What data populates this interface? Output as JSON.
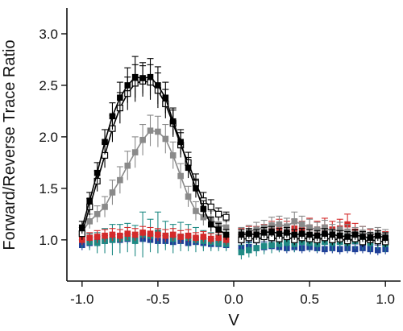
{
  "chart_data": {
    "type": "line",
    "title": "",
    "xlabel": "V",
    "ylabel": "Forward/Reverse Trace Ratio",
    "xlim": [
      -1.1,
      1.1
    ],
    "ylim": [
      0.6,
      3.25
    ],
    "xticks": [
      -1.0,
      -0.5,
      0.0,
      0.5,
      1.0
    ],
    "xtick_labels": [
      "-1.0",
      "-0.5",
      "0.0",
      "0.5",
      "1.0"
    ],
    "yticks": [
      1.0,
      1.5,
      2.0,
      2.5,
      3.0
    ],
    "ytick_labels": [
      "1.0",
      "1.5",
      "2.0",
      "2.5",
      "3.0"
    ],
    "grid": false,
    "legend": "none",
    "series": [
      {
        "color": "#000000",
        "marker": "filled-square",
        "line": true,
        "x": [
          -1.0,
          -0.95,
          -0.9,
          -0.85,
          -0.8,
          -0.75,
          -0.7,
          -0.65,
          -0.6,
          -0.55,
          -0.5,
          -0.45,
          -0.4,
          -0.35,
          -0.3,
          -0.25,
          -0.2,
          -0.15,
          -0.1,
          -0.05,
          0.05,
          0.1,
          0.15,
          0.2,
          0.25,
          0.3,
          0.35,
          0.4,
          0.45,
          0.5,
          0.55,
          0.6,
          0.65,
          0.7,
          0.75,
          0.8,
          0.85,
          0.9,
          0.95,
          1.0
        ],
        "y": [
          1.12,
          1.38,
          1.65,
          1.95,
          2.2,
          2.38,
          2.5,
          2.58,
          2.57,
          2.58,
          2.5,
          2.38,
          2.15,
          1.95,
          1.7,
          1.5,
          1.3,
          1.15,
          1.1,
          1.05,
          1.05,
          1.06,
          1.05,
          1.07,
          1.08,
          1.06,
          1.07,
          1.05,
          1.06,
          1.05,
          1.04,
          1.06,
          1.05,
          1.04,
          1.03,
          1.05,
          1.03,
          1.02,
          1.04,
          1.02
        ],
        "err": [
          0.06,
          0.08,
          0.1,
          0.12,
          0.13,
          0.15,
          0.17,
          0.2,
          0.15,
          0.18,
          0.18,
          0.15,
          0.13,
          0.12,
          0.1,
          0.09,
          0.08,
          0.07,
          0.06,
          0.05,
          0.05,
          0.05,
          0.05,
          0.05,
          0.05,
          0.05,
          0.05,
          0.05,
          0.05,
          0.05,
          0.05,
          0.05,
          0.05,
          0.05,
          0.05,
          0.05,
          0.05,
          0.05,
          0.05,
          0.05
        ]
      },
      {
        "color": "#000000",
        "marker": "open-square",
        "line": true,
        "x": [
          -1.0,
          -0.95,
          -0.9,
          -0.85,
          -0.8,
          -0.75,
          -0.7,
          -0.65,
          -0.6,
          -0.55,
          -0.5,
          -0.45,
          -0.4,
          -0.35,
          -0.3,
          -0.25,
          -0.2,
          -0.15,
          -0.1,
          -0.05,
          0.05,
          0.1,
          0.15,
          0.2,
          0.25,
          0.3,
          0.35,
          0.4,
          0.45,
          0.5,
          0.55,
          0.6,
          0.65,
          0.7,
          0.75,
          0.8,
          0.85,
          0.9,
          0.95,
          1.0
        ],
        "y": [
          1.06,
          1.32,
          1.57,
          1.82,
          2.08,
          2.28,
          2.42,
          2.52,
          2.54,
          2.53,
          2.45,
          2.32,
          2.13,
          1.92,
          1.75,
          1.55,
          1.38,
          1.32,
          1.25,
          1.22,
          1.0,
          1.02,
          1.0,
          1.03,
          1.02,
          1.01,
          1.03,
          1.0,
          1.02,
          1.01,
          1.0,
          1.02,
          1.0,
          1.01,
          0.99,
          1.01,
          0.98,
          1.0,
          0.99,
          0.98
        ],
        "err": [
          0.06,
          0.08,
          0.1,
          0.12,
          0.13,
          0.15,
          0.16,
          0.18,
          0.15,
          0.17,
          0.17,
          0.14,
          0.13,
          0.12,
          0.1,
          0.09,
          0.08,
          0.07,
          0.06,
          0.05,
          0.05,
          0.05,
          0.05,
          0.05,
          0.05,
          0.05,
          0.05,
          0.05,
          0.05,
          0.05,
          0.05,
          0.05,
          0.05,
          0.05,
          0.05,
          0.05,
          0.05,
          0.05,
          0.05,
          0.05
        ]
      },
      {
        "color": "#8a8a8a",
        "marker": "filled-square",
        "line": true,
        "x": [
          -1.0,
          -0.95,
          -0.9,
          -0.85,
          -0.8,
          -0.75,
          -0.7,
          -0.65,
          -0.6,
          -0.55,
          -0.5,
          -0.45,
          -0.4,
          -0.35,
          -0.3,
          -0.25,
          -0.2,
          -0.15,
          -0.1,
          -0.05,
          0.05,
          0.1,
          0.15,
          0.2,
          0.25,
          0.3,
          0.35,
          0.4,
          0.45,
          0.5,
          0.55,
          0.6,
          0.65,
          0.7,
          0.75,
          0.8,
          0.85,
          0.9,
          0.95,
          1.0
        ],
        "y": [
          1.08,
          1.18,
          1.25,
          1.32,
          1.46,
          1.58,
          1.72,
          1.85,
          1.97,
          2.06,
          2.05,
          1.98,
          1.82,
          1.62,
          1.42,
          1.28,
          1.22,
          1.2,
          1.15,
          1.12,
          1.06,
          1.08,
          1.1,
          1.12,
          1.14,
          1.15,
          1.13,
          1.18,
          1.15,
          1.12,
          1.1,
          1.12,
          1.08,
          1.1,
          1.08,
          1.06,
          1.07,
          1.05,
          1.06,
          1.04
        ],
        "err": [
          0.06,
          0.07,
          0.08,
          0.1,
          0.12,
          0.13,
          0.14,
          0.15,
          0.15,
          0.15,
          0.15,
          0.14,
          0.13,
          0.12,
          0.1,
          0.09,
          0.08,
          0.08,
          0.07,
          0.06,
          0.06,
          0.06,
          0.07,
          0.07,
          0.08,
          0.08,
          0.08,
          0.09,
          0.08,
          0.08,
          0.07,
          0.07,
          0.07,
          0.07,
          0.07,
          0.06,
          0.06,
          0.06,
          0.06,
          0.06
        ]
      },
      {
        "color": "#d42a2a",
        "marker": "filled-square",
        "line": false,
        "x": [
          -1.0,
          -0.95,
          -0.9,
          -0.85,
          -0.8,
          -0.75,
          -0.7,
          -0.65,
          -0.6,
          -0.55,
          -0.5,
          -0.45,
          -0.4,
          -0.35,
          -0.3,
          -0.25,
          -0.2,
          -0.15,
          -0.1,
          -0.05,
          0.05,
          0.1,
          0.15,
          0.2,
          0.25,
          0.3,
          0.35,
          0.4,
          0.45,
          0.5,
          0.55,
          0.6,
          0.65,
          0.7,
          0.75,
          0.8,
          0.85,
          0.9,
          0.95,
          1.0
        ],
        "y": [
          1.0,
          1.02,
          1.03,
          1.04,
          1.05,
          1.04,
          1.06,
          1.05,
          1.07,
          1.06,
          1.05,
          1.04,
          1.05,
          1.03,
          1.04,
          1.02,
          1.03,
          1.01,
          1.02,
          1.0,
          1.05,
          1.07,
          1.06,
          1.08,
          1.1,
          1.12,
          1.1,
          1.11,
          1.1,
          1.12,
          1.1,
          1.12,
          1.1,
          1.11,
          1.15,
          1.08,
          1.06,
          1.04,
          1.03,
          1.02
        ],
        "err": [
          0.05,
          0.05,
          0.06,
          0.06,
          0.06,
          0.06,
          0.06,
          0.06,
          0.06,
          0.06,
          0.06,
          0.06,
          0.06,
          0.06,
          0.06,
          0.05,
          0.05,
          0.05,
          0.05,
          0.05,
          0.06,
          0.06,
          0.07,
          0.07,
          0.08,
          0.08,
          0.08,
          0.09,
          0.08,
          0.09,
          0.08,
          0.09,
          0.08,
          0.09,
          0.1,
          0.08,
          0.07,
          0.06,
          0.06,
          0.06
        ]
      },
      {
        "color": "#1f8a84",
        "marker": "filled-square",
        "line": false,
        "x": [
          -1.0,
          -0.95,
          -0.9,
          -0.85,
          -0.8,
          -0.75,
          -0.7,
          -0.65,
          -0.6,
          -0.55,
          -0.5,
          -0.45,
          -0.4,
          -0.35,
          -0.3,
          -0.25,
          -0.2,
          -0.15,
          -0.1,
          -0.05,
          0.05,
          0.1,
          0.15,
          0.2,
          0.25,
          0.3,
          0.35,
          0.4,
          0.45,
          0.5,
          0.55,
          0.6,
          0.65,
          0.7,
          0.75,
          0.8,
          0.85,
          0.9,
          0.95,
          1.0
        ],
        "y": [
          1.0,
          0.98,
          0.97,
          0.99,
          1.0,
          1.01,
          1.02,
          0.99,
          1.05,
          1.04,
          1.07,
          1.04,
          1.01,
          1.03,
          1.02,
          1.0,
          0.99,
          0.98,
          0.97,
          0.96,
          0.88,
          0.9,
          0.92,
          0.94,
          0.95,
          0.96,
          0.97,
          0.96,
          0.98,
          0.97,
          0.96,
          0.98,
          0.97,
          0.98,
          0.97,
          0.99,
          0.98,
          0.97,
          0.99,
          0.96
        ],
        "err": [
          0.08,
          0.08,
          0.1,
          0.12,
          0.15,
          0.14,
          0.14,
          0.15,
          0.22,
          0.16,
          0.2,
          0.14,
          0.14,
          0.14,
          0.13,
          0.12,
          0.1,
          0.09,
          0.08,
          0.07,
          0.07,
          0.07,
          0.08,
          0.08,
          0.08,
          0.08,
          0.08,
          0.08,
          0.08,
          0.08,
          0.08,
          0.08,
          0.08,
          0.08,
          0.08,
          0.08,
          0.08,
          0.08,
          0.08,
          0.08
        ]
      },
      {
        "color": "#1f3f99",
        "marker": "filled-square",
        "line": false,
        "x": [
          -1.0,
          -0.95,
          -0.9,
          -0.85,
          -0.8,
          -0.75,
          -0.7,
          -0.65,
          -0.6,
          -0.55,
          -0.5,
          -0.45,
          -0.4,
          -0.35,
          -0.3,
          -0.25,
          -0.2,
          -0.15,
          -0.1,
          -0.05,
          0.05,
          0.1,
          0.15,
          0.2,
          0.25,
          0.3,
          0.35,
          0.4,
          0.45,
          0.5,
          0.55,
          0.6,
          0.65,
          0.7,
          0.75,
          0.8,
          0.85,
          0.9,
          0.95,
          1.0
        ],
        "y": [
          0.95,
          0.97,
          0.98,
          0.99,
          1.0,
          1.0,
          1.01,
          1.0,
          1.01,
          1.0,
          0.99,
          0.99,
          0.98,
          0.99,
          0.97,
          0.98,
          0.97,
          0.96,
          0.96,
          0.95,
          0.92,
          0.93,
          0.92,
          0.93,
          0.94,
          0.93,
          0.92,
          0.93,
          0.92,
          0.93,
          0.92,
          0.91,
          0.92,
          0.91,
          0.92,
          0.91,
          0.92,
          0.91,
          0.9,
          0.91
        ],
        "err": [
          0.05,
          0.05,
          0.05,
          0.05,
          0.05,
          0.05,
          0.05,
          0.05,
          0.05,
          0.05,
          0.05,
          0.05,
          0.05,
          0.05,
          0.05,
          0.05,
          0.05,
          0.05,
          0.05,
          0.05,
          0.05,
          0.05,
          0.05,
          0.05,
          0.05,
          0.05,
          0.05,
          0.05,
          0.05,
          0.05,
          0.05,
          0.05,
          0.05,
          0.05,
          0.05,
          0.05,
          0.05,
          0.05,
          0.05,
          0.05
        ]
      }
    ]
  }
}
